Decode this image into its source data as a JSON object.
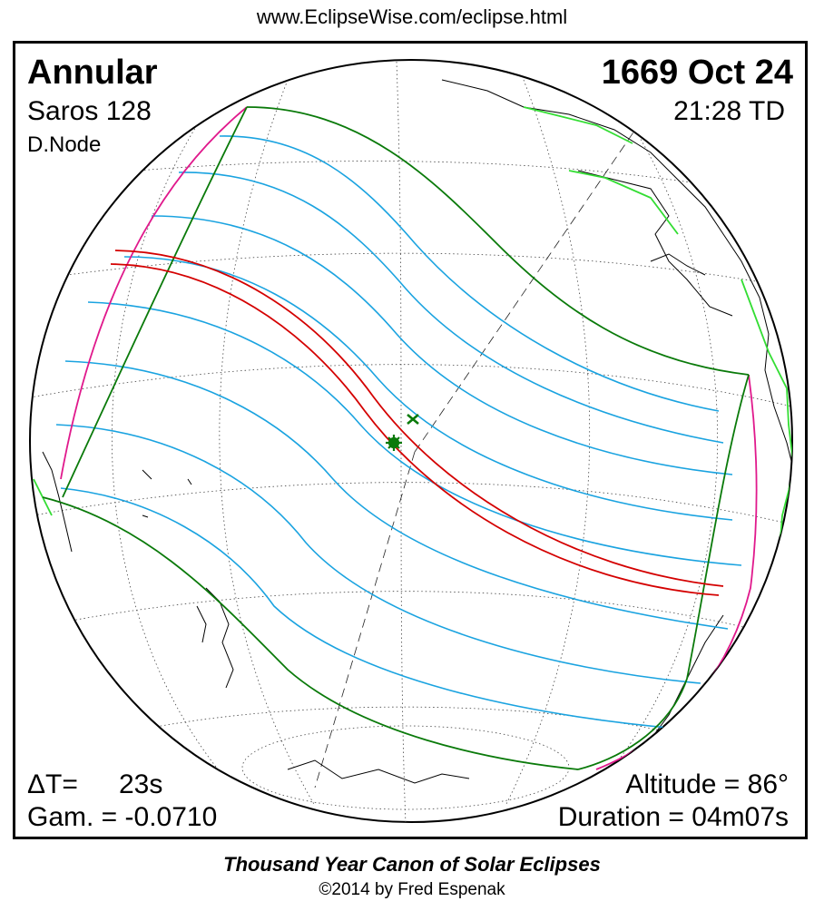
{
  "header": {
    "url": "www.EclipseWise.com/eclipse.html"
  },
  "eclipse": {
    "type": "Annular",
    "date": "1669 Oct 24",
    "saros": "Saros 128",
    "time": "21:28 TD",
    "node": "D.Node",
    "delta_t_label": "ΔT=",
    "delta_t_value": "23s",
    "gamma": "Gam. = -0.0710",
    "altitude": "Altitude = 86°",
    "duration": "Duration = 04m07s"
  },
  "footer": {
    "title": "Thousand Year Canon of Solar Eclipses",
    "copyright": "©2014 by Fred Espenak"
  },
  "colors": {
    "central_path": "#d40000",
    "penumbra_limits": "#0a7a0a",
    "magnitude_lines": "#1aa3e0",
    "rise_set_curves": "#e0198c",
    "country_borders": "#33dd33",
    "greatest_eclipse_marker": "#0a7a0a"
  }
}
